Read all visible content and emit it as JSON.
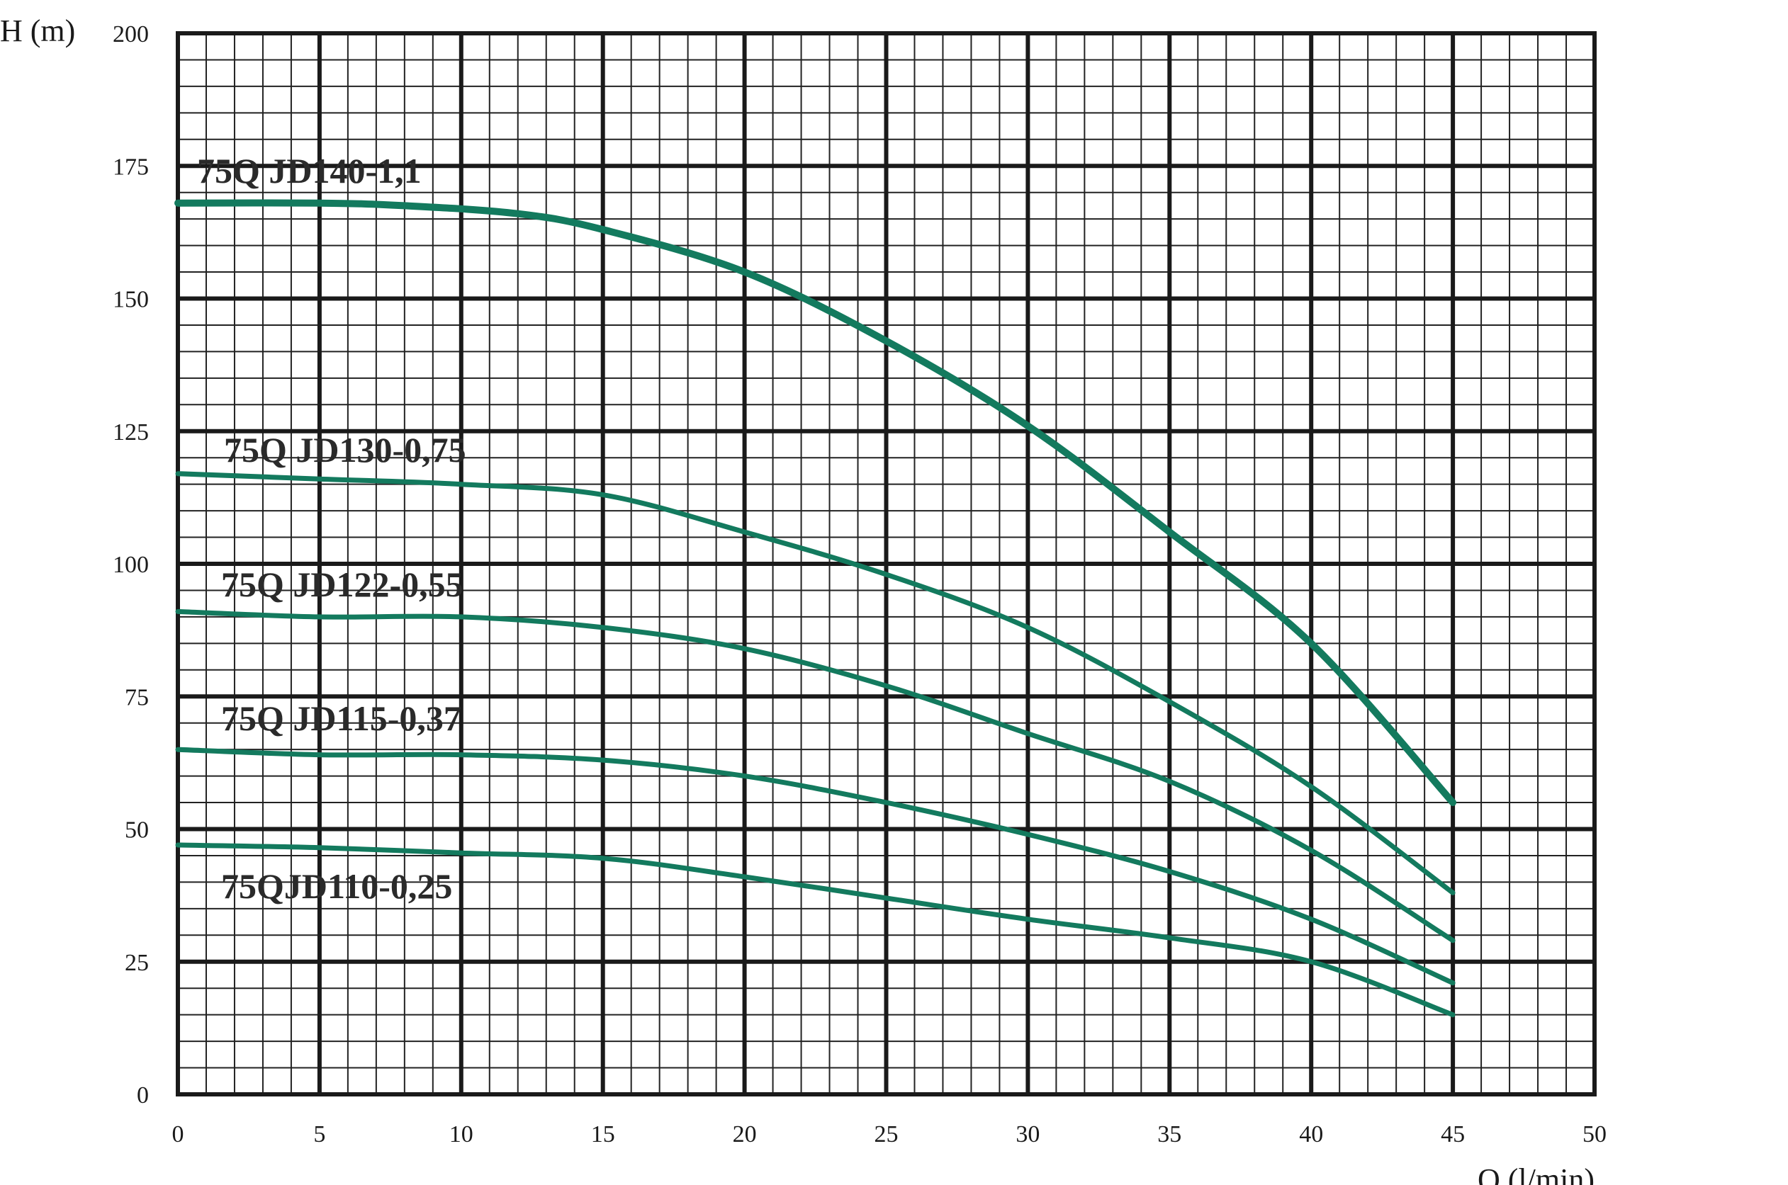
{
  "chart_data": {
    "type": "line",
    "xlabel": "Q (l/min)",
    "ylabel": "H (m)",
    "xlim": [
      0,
      50
    ],
    "ylim": [
      0,
      200
    ],
    "xticks": [
      "0",
      "5",
      "10",
      "15",
      "20",
      "25",
      "30",
      "35",
      "40",
      "45",
      "50"
    ],
    "yticks": [
      "0",
      "25",
      "50",
      "75",
      "100",
      "125",
      "150",
      "175",
      "200"
    ],
    "grid": true,
    "line_color": "#137a5e",
    "series": [
      {
        "name": "75Q JD140-1,1",
        "x": [
          0,
          5,
          8,
          12,
          15,
          20,
          25,
          30,
          35,
          40,
          45
        ],
        "y": [
          168,
          168,
          167.5,
          166,
          163,
          155,
          142,
          126,
          106,
          85,
          55
        ]
      },
      {
        "name": "75Q JD130-0,75",
        "x": [
          0,
          5,
          10,
          15,
          20,
          25,
          30,
          35,
          40,
          45
        ],
        "y": [
          117,
          116,
          115,
          113,
          106,
          98,
          88,
          74,
          58,
          38
        ]
      },
      {
        "name": "75Q JD122-0,55",
        "x": [
          0,
          5,
          10,
          15,
          20,
          25,
          30,
          35,
          40,
          45
        ],
        "y": [
          91,
          90,
          90,
          88,
          84,
          77,
          68,
          59,
          46,
          29
        ]
      },
      {
        "name": "75Q JD115-0,37",
        "x": [
          0,
          5,
          10,
          15,
          20,
          25,
          30,
          35,
          40,
          45
        ],
        "y": [
          65,
          64,
          64,
          63,
          60,
          55,
          49,
          42,
          33,
          21
        ]
      },
      {
        "name": "75QJD110-0,25",
        "x": [
          0,
          5,
          10,
          15,
          20,
          25,
          30,
          35,
          40,
          45
        ],
        "y": [
          47,
          46.5,
          45.5,
          44.5,
          41,
          37,
          33,
          29.5,
          25,
          15
        ]
      }
    ]
  }
}
